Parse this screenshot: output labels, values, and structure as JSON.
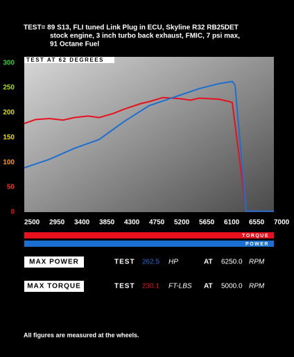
{
  "chart_data": {
    "type": "line",
    "title_lines": [
      "TEST= 89 S13, FLI tuned Link Plug in ECU, Skyline R32 RB25DET",
      "stock engine, 3 inch turbo back exhaust,  FMIC, 7 psi max,",
      "91 Octane Fuel"
    ],
    "plot_label": "TEST AT 62 DEGREES",
    "xlim": [
      2500,
      7000
    ],
    "xticks": [
      2500,
      2950,
      3400,
      3850,
      4300,
      4750,
      5200,
      5650,
      6100,
      6550,
      7000
    ],
    "ylim": [
      0,
      312
    ],
    "yticks": [
      0,
      50,
      100,
      150,
      200,
      250,
      300
    ],
    "ytick_colors": [
      "#ee1111",
      "#ff3311",
      "#ff9900",
      "#eedd00",
      "#dddd00",
      "#aadd00",
      "#33cc33"
    ],
    "series": [
      {
        "name": "TORQUE",
        "color": "#e8101c",
        "x": [
          2500,
          2700,
          2950,
          3200,
          3400,
          3650,
          3850,
          4100,
          4300,
          4600,
          4750,
          5000,
          5300,
          5500,
          5650,
          6000,
          6200,
          6250,
          6500,
          7000
        ],
        "values": [
          178,
          186,
          188,
          185,
          190,
          193,
          190,
          198,
          207,
          218,
          222,
          230.1,
          228,
          225,
          229,
          227,
          222,
          220,
          2,
          2
        ]
      },
      {
        "name": "POWER",
        "color": "#1a6fd0",
        "x": [
          2500,
          2950,
          3400,
          3850,
          4300,
          4750,
          5200,
          5650,
          6000,
          6250,
          6300,
          6500,
          7000
        ],
        "values": [
          89,
          106,
          128,
          146,
          182,
          214,
          231,
          248,
          258,
          262.5,
          255,
          2,
          2
        ]
      }
    ]
  },
  "stats": [
    {
      "label": "MAX POWER",
      "test": "TEST",
      "value": "262.5",
      "unit": "HP",
      "at": "AT",
      "rpm": "6250.0",
      "rpm_unit": "RPM",
      "color": "#1a6fd0"
    },
    {
      "label": "MAX TORQUE",
      "test": "TEST",
      "value": "230.1",
      "unit": "FT-LBS",
      "at": "AT",
      "rpm": "5000.0",
      "rpm_unit": "RPM",
      "color": "#e8101c"
    }
  ],
  "footer": "All figures are measured at the wheels."
}
